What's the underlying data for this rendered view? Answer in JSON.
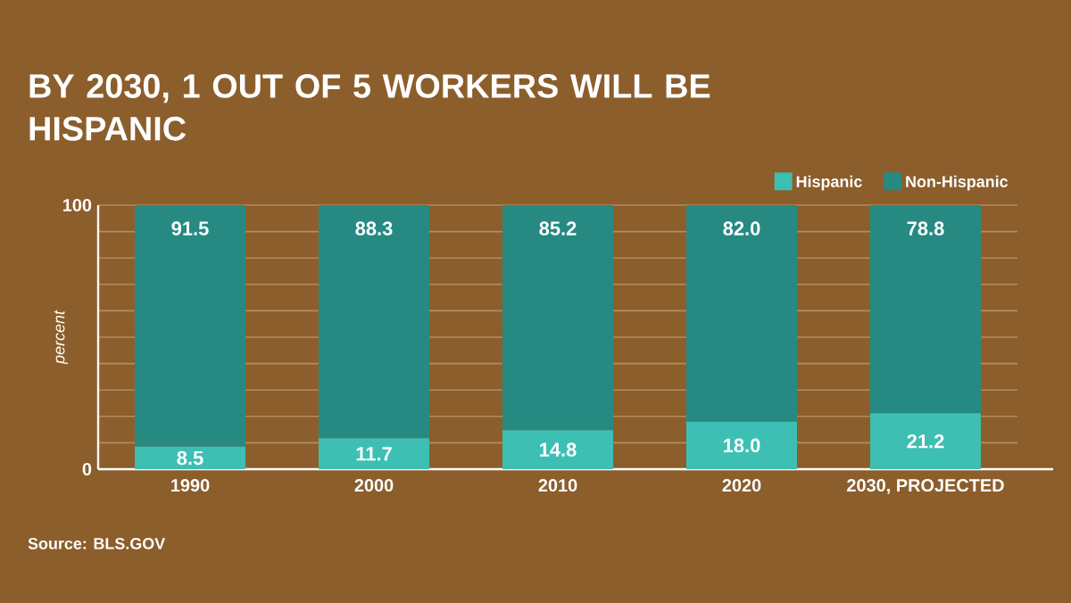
{
  "chart_data": {
    "type": "bar",
    "title": "BY 2030, 1 OUT OF 5 WORKERS WILL BE HISPANIC",
    "ylabel": "percent",
    "categories": [
      "1990",
      "2000",
      "2010",
      "2020",
      "2030, PROJECTED"
    ],
    "series": [
      {
        "name": "Hispanic",
        "color": "#3dbfb4",
        "values": [
          8.5,
          11.7,
          14.8,
          18.0,
          21.2
        ],
        "value_labels": [
          "8.5",
          "11.7",
          "14.8",
          "18.0",
          "21.2"
        ]
      },
      {
        "name": "Non-Hispanic",
        "color": "#268a82",
        "values": [
          91.5,
          88.3,
          85.2,
          82.0,
          78.8
        ],
        "value_labels": [
          "91.5",
          "88.3",
          "85.2",
          "82.0",
          "78.8"
        ]
      }
    ],
    "stacked": true,
    "ylim": [
      0,
      100
    ],
    "yticks": [
      0,
      {
        "value": 10,
        "label": null
      },
      {
        "value": 20,
        "label": null
      },
      {
        "value": 30,
        "label": null
      },
      {
        "value": 40,
        "label": null
      },
      {
        "value": 50,
        "label": null
      },
      {
        "value": 60,
        "label": null
      },
      {
        "value": 70,
        "label": null
      },
      {
        "value": 80,
        "label": null
      },
      {
        "value": 90,
        "label": null
      },
      100
    ],
    "grid": "y",
    "legend": "top right",
    "annotations": [
      "Source: BLS.GOV"
    ]
  }
}
